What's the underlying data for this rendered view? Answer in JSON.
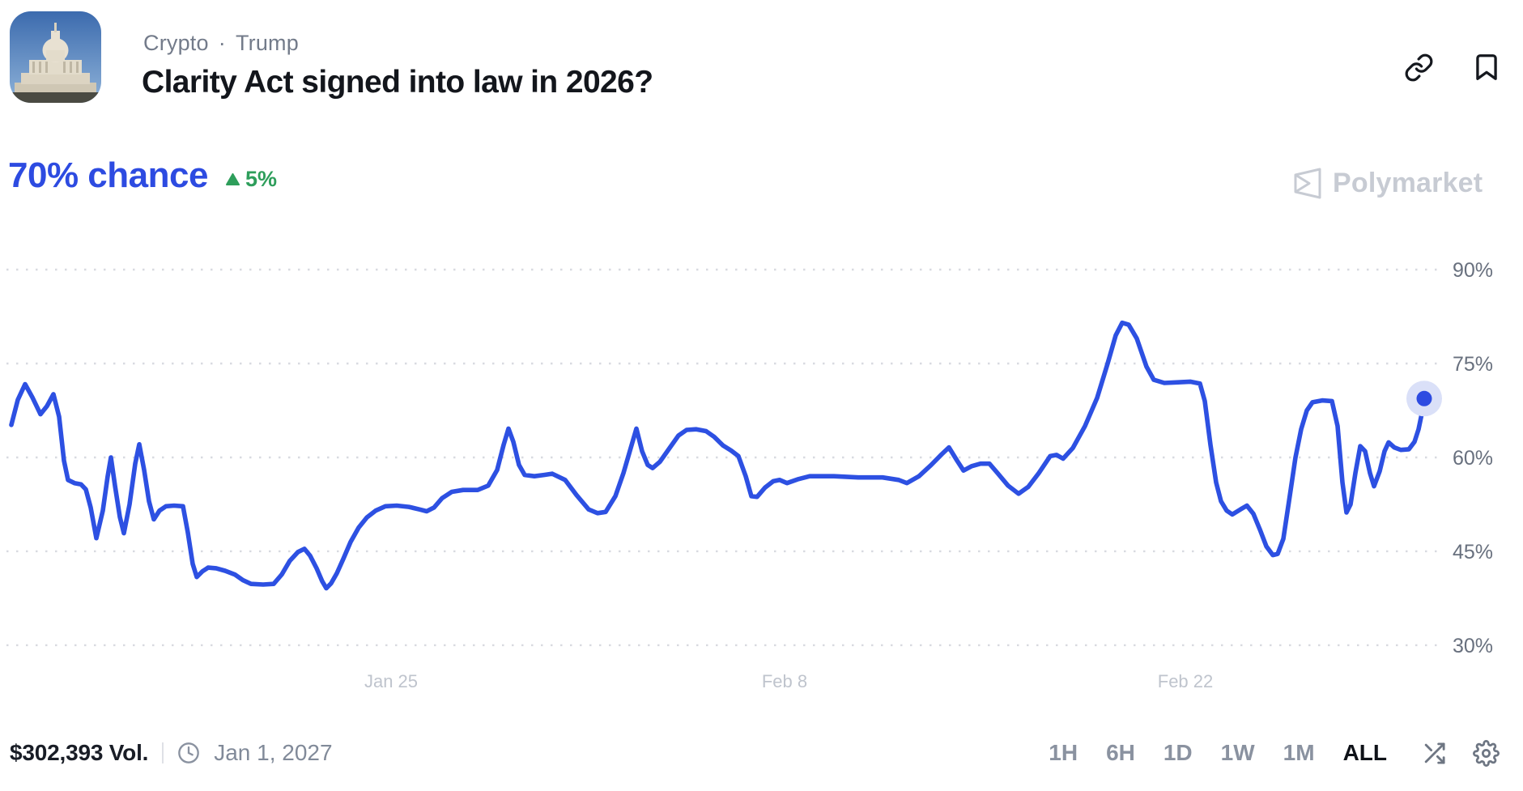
{
  "header": {
    "breadcrumb": [
      "Crypto",
      "Trump"
    ],
    "separator": "·",
    "title": "Clarity Act signed into law in 2026?",
    "market_icon_description": "US Capitol building photo",
    "action_icons": [
      "link-icon",
      "bookmark-icon"
    ]
  },
  "price": {
    "chance_label": "70% chance",
    "change": "5%",
    "change_direction": "up"
  },
  "watermark": {
    "brand": "Polymarket"
  },
  "chart_data": {
    "type": "line",
    "title": "Probability of 'Clarity Act signed into law in 2026?' over time",
    "current_value_pct": 70,
    "change_pct": 5,
    "grid": "dotted horizontal gridlines, labels on right",
    "legend": "none",
    "ylim": [
      25,
      95
    ],
    "y_ticks": [
      "90%",
      "75%",
      "60%",
      "45%",
      "30%"
    ],
    "y_tick_values": [
      90,
      75,
      60,
      45,
      30
    ],
    "x_axis": {
      "tick_labels": [
        "Jan 25",
        "Feb 8",
        "Feb 22"
      ],
      "tick_x": [
        483,
        969,
        1464
      ],
      "approx_span": "mid-Jan to early Mar"
    },
    "render": {
      "y90": 333,
      "pxPerPct": 7.733,
      "gridX0": 8,
      "gridX1": 1778,
      "labelX": 1794,
      "xLabelY": 849
    },
    "series": [
      {
        "name": "Yes probability (%)",
        "color": "#2D50E2",
        "endpoint_dot_color": "#2D4BE1",
        "endpoint_halo_color": "#DAE0F8",
        "points": [
          [
            14,
            65.2
          ],
          [
            22,
            69.2
          ],
          [
            31,
            71.7
          ],
          [
            40,
            69.6
          ],
          [
            50,
            66.9
          ],
          [
            58,
            68.2
          ],
          [
            66,
            70.1
          ],
          [
            73,
            66.5
          ],
          [
            79,
            59.5
          ],
          [
            84,
            56.4
          ],
          [
            92,
            55.9
          ],
          [
            100,
            55.7
          ],
          [
            106,
            54.9
          ],
          [
            112,
            52.0
          ],
          [
            119,
            47.1
          ],
          [
            127,
            51.5
          ],
          [
            133,
            57.0
          ],
          [
            137,
            60.0
          ],
          [
            142,
            55.5
          ],
          [
            148,
            50.5
          ],
          [
            153,
            47.9
          ],
          [
            160,
            52.5
          ],
          [
            167,
            59.0
          ],
          [
            172,
            62.1
          ],
          [
            178,
            58.0
          ],
          [
            184,
            53.0
          ],
          [
            190,
            50.1
          ],
          [
            197,
            51.5
          ],
          [
            205,
            52.2
          ],
          [
            215,
            52.3
          ],
          [
            226,
            52.2
          ],
          [
            232,
            48.0
          ],
          [
            238,
            43.0
          ],
          [
            243,
            40.9
          ],
          [
            250,
            41.8
          ],
          [
            257,
            42.4
          ],
          [
            267,
            42.3
          ],
          [
            278,
            41.9
          ],
          [
            290,
            41.3
          ],
          [
            300,
            40.4
          ],
          [
            310,
            39.8
          ],
          [
            325,
            39.7
          ],
          [
            338,
            39.8
          ],
          [
            348,
            41.3
          ],
          [
            358,
            43.5
          ],
          [
            368,
            44.9
          ],
          [
            376,
            45.4
          ],
          [
            383,
            44.3
          ],
          [
            391,
            42.3
          ],
          [
            398,
            40.2
          ],
          [
            403,
            39.1
          ],
          [
            409,
            39.9
          ],
          [
            416,
            41.5
          ],
          [
            424,
            43.8
          ],
          [
            433,
            46.5
          ],
          [
            443,
            48.8
          ],
          [
            453,
            50.4
          ],
          [
            464,
            51.5
          ],
          [
            476,
            52.2
          ],
          [
            490,
            52.3
          ],
          [
            505,
            52.1
          ],
          [
            518,
            51.7
          ],
          [
            527,
            51.4
          ],
          [
            536,
            52.0
          ],
          [
            546,
            53.5
          ],
          [
            558,
            54.5
          ],
          [
            572,
            54.8
          ],
          [
            590,
            54.8
          ],
          [
            603,
            55.5
          ],
          [
            614,
            58.0
          ],
          [
            622,
            62.0
          ],
          [
            628,
            64.6
          ],
          [
            634,
            62.5
          ],
          [
            641,
            58.8
          ],
          [
            648,
            57.2
          ],
          [
            660,
            57.0
          ],
          [
            672,
            57.2
          ],
          [
            682,
            57.4
          ],
          [
            698,
            56.4
          ],
          [
            712,
            54.0
          ],
          [
            727,
            51.7
          ],
          [
            738,
            51.1
          ],
          [
            748,
            51.3
          ],
          [
            760,
            53.8
          ],
          [
            770,
            57.5
          ],
          [
            779,
            61.5
          ],
          [
            786,
            64.6
          ],
          [
            793,
            61.0
          ],
          [
            800,
            58.8
          ],
          [
            806,
            58.3
          ],
          [
            815,
            59.3
          ],
          [
            827,
            61.5
          ],
          [
            838,
            63.5
          ],
          [
            848,
            64.4
          ],
          [
            860,
            64.5
          ],
          [
            872,
            64.2
          ],
          [
            882,
            63.3
          ],
          [
            893,
            61.9
          ],
          [
            903,
            61.1
          ],
          [
            912,
            60.2
          ],
          [
            921,
            57.0
          ],
          [
            928,
            53.8
          ],
          [
            935,
            53.7
          ],
          [
            945,
            55.2
          ],
          [
            955,
            56.2
          ],
          [
            963,
            56.4
          ],
          [
            972,
            55.9
          ],
          [
            985,
            56.5
          ],
          [
            1000,
            57.0
          ],
          [
            1030,
            57.0
          ],
          [
            1060,
            56.8
          ],
          [
            1090,
            56.8
          ],
          [
            1110,
            56.4
          ],
          [
            1120,
            55.9
          ],
          [
            1135,
            57.0
          ],
          [
            1150,
            58.8
          ],
          [
            1163,
            60.5
          ],
          [
            1172,
            61.6
          ],
          [
            1182,
            59.5
          ],
          [
            1190,
            57.9
          ],
          [
            1200,
            58.6
          ],
          [
            1211,
            59.0
          ],
          [
            1222,
            59.0
          ],
          [
            1232,
            57.5
          ],
          [
            1245,
            55.5
          ],
          [
            1258,
            54.2
          ],
          [
            1270,
            55.3
          ],
          [
            1283,
            57.5
          ],
          [
            1297,
            60.2
          ],
          [
            1305,
            60.4
          ],
          [
            1313,
            59.8
          ],
          [
            1325,
            61.5
          ],
          [
            1340,
            65.0
          ],
          [
            1355,
            69.5
          ],
          [
            1368,
            75.0
          ],
          [
            1378,
            79.5
          ],
          [
            1386,
            81.5
          ],
          [
            1394,
            81.2
          ],
          [
            1404,
            79.0
          ],
          [
            1416,
            74.5
          ],
          [
            1425,
            72.4
          ],
          [
            1438,
            71.9
          ],
          [
            1455,
            72.0
          ],
          [
            1470,
            72.1
          ],
          [
            1482,
            71.8
          ],
          [
            1488,
            69.0
          ],
          [
            1495,
            62.0
          ],
          [
            1502,
            56.0
          ],
          [
            1508,
            53.0
          ],
          [
            1515,
            51.5
          ],
          [
            1522,
            50.9
          ],
          [
            1532,
            51.7
          ],
          [
            1540,
            52.3
          ],
          [
            1548,
            51.0
          ],
          [
            1556,
            48.5
          ],
          [
            1564,
            45.8
          ],
          [
            1572,
            44.4
          ],
          [
            1578,
            44.6
          ],
          [
            1585,
            47.0
          ],
          [
            1592,
            53.0
          ],
          [
            1600,
            60.0
          ],
          [
            1607,
            64.5
          ],
          [
            1614,
            67.5
          ],
          [
            1621,
            68.8
          ],
          [
            1633,
            69.1
          ],
          [
            1645,
            69.0
          ],
          [
            1652,
            65.0
          ],
          [
            1658,
            56.0
          ],
          [
            1663,
            51.2
          ],
          [
            1668,
            52.5
          ],
          [
            1674,
            57.5
          ],
          [
            1680,
            61.8
          ],
          [
            1686,
            61.0
          ],
          [
            1692,
            57.5
          ],
          [
            1697,
            55.4
          ],
          [
            1704,
            57.8
          ],
          [
            1710,
            61.0
          ],
          [
            1715,
            62.4
          ],
          [
            1722,
            61.6
          ],
          [
            1730,
            61.2
          ],
          [
            1740,
            61.3
          ],
          [
            1747,
            62.5
          ],
          [
            1752,
            64.5
          ],
          [
            1756,
            67.0
          ],
          [
            1759,
            69.4
          ]
        ]
      }
    ]
  },
  "footer": {
    "volume": "$302,393 Vol.",
    "end_date": "Jan 1, 2027",
    "timeframes": [
      "1H",
      "6H",
      "1D",
      "1W",
      "1M",
      "ALL"
    ],
    "selected_timeframe": "ALL",
    "icons": [
      "clock-icon",
      "shuffle-icon",
      "gear-icon"
    ]
  },
  "colors": {
    "accent_blue": "#2D4BE1",
    "line_blue": "#2D50E2",
    "halo_blue": "#DAE0F8",
    "positive_green": "#2E9E5B",
    "title_text": "#13161C",
    "muted_text": "#737B8A",
    "axis_label": "#68707E",
    "x_axis_label": "#BFC4CD",
    "watermark_gray": "#C7CBD3",
    "gridline": "#D8DAE0"
  }
}
